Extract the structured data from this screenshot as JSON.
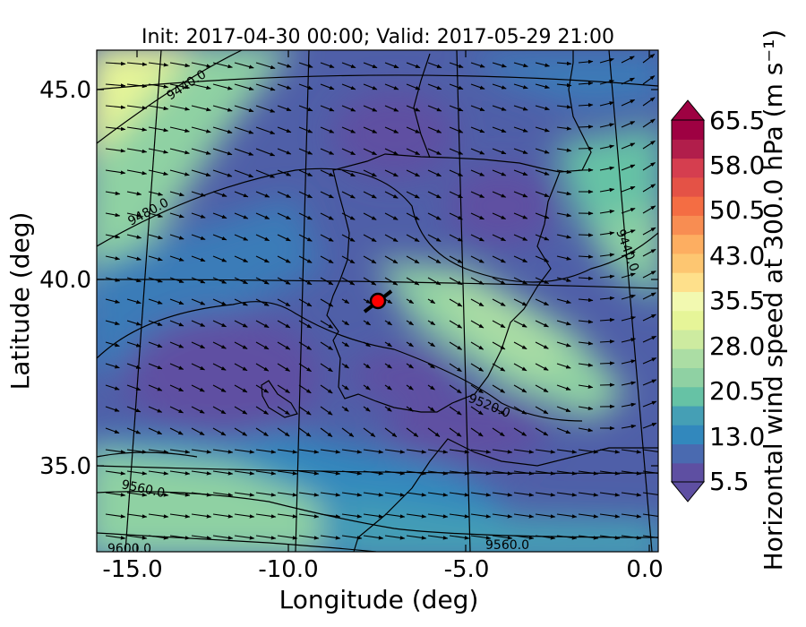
{
  "title": "Init: 2017-04-30 00:00; Valid: 2017-05-29 21:00",
  "xlabel": "Longitude (deg)",
  "ylabel": "Latitude (deg)",
  "x_ticks": [
    "-15.0",
    "-10.0",
    "-5.0",
    "0.0"
  ],
  "y_ticks": [
    "45.0",
    "40.0",
    "35.0"
  ],
  "colorbar": {
    "label": "Horizontal wind speed at 300.0 hPa (m s⁻¹)",
    "tick_labels": [
      "65.5",
      "58.0",
      "50.5",
      "43.0",
      "35.5",
      "28.0",
      "20.5",
      "13.0",
      "5.5"
    ],
    "colors": [
      "#5e4fa2",
      "#4a6ab0",
      "#3288bd",
      "#459fb5",
      "#66c2a5",
      "#8fd1a3",
      "#abdda4",
      "#cdeba0",
      "#e6f598",
      "#f2f9b0",
      "#fee08b",
      "#fdc671",
      "#fdae61",
      "#f88d52",
      "#f46d43",
      "#e45246",
      "#d53e4f",
      "#b11e4b",
      "#9e0142"
    ]
  },
  "contour_labels": [
    "9440.0",
    "9480.0",
    "9560.0",
    "9600.0",
    "9560.0",
    "9520.0",
    "9440.0"
  ],
  "marker": {
    "lon": -7.6,
    "lat": 39.3,
    "color": "#ff0000"
  },
  "chart_data": {
    "type": "heatmap",
    "title": "Init: 2017-04-30 00:00; Valid: 2017-05-29 21:00",
    "xlabel": "Longitude (deg)",
    "ylabel": "Latitude (deg)",
    "xlim": [
      -16.0,
      0.3
    ],
    "ylim": [
      32.6,
      46.0
    ],
    "colorbar_range": [
      5.5,
      65.5
    ],
    "colorbar_ticks": [
      5.5,
      13.0,
      20.5,
      28.0,
      35.5,
      43.0,
      50.5,
      58.0,
      65.5
    ],
    "contour_levels": [
      9440.0,
      9480.0,
      9520.0,
      9560.0,
      9600.0
    ]
  }
}
